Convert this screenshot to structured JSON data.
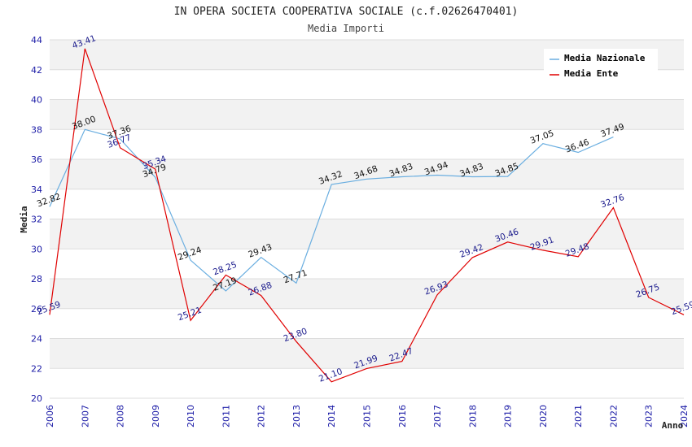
{
  "title": "IN OPERA SOCIETA COOPERATIVA SOCIALE (c.f.02626470401)",
  "subtitle": "Media Importi",
  "colors": {
    "nazionale": "#6aaee0",
    "ente": "#e00000",
    "tick": "#1a1aa6",
    "band": "#f2f2f2",
    "grid": "#dddddd"
  },
  "chart_data": {
    "type": "line",
    "xlabel": "Anno",
    "ylabel": "Media",
    "ylim": [
      20,
      44
    ],
    "yticks": [
      20,
      22,
      24,
      26,
      28,
      30,
      32,
      34,
      36,
      38,
      40,
      42,
      44
    ],
    "x": [
      "2006",
      "2007",
      "2008",
      "2009",
      "2010",
      "2011",
      "2012",
      "2013",
      "2014",
      "2015",
      "2016",
      "2017",
      "2018",
      "2019",
      "2020",
      "2021",
      "2022",
      "2023",
      "2024"
    ],
    "legend_position": "top-right",
    "grid": true,
    "series": [
      {
        "name": "Media Nazionale",
        "color": "#6aaee0",
        "label_color": "#111111",
        "values": [
          32.82,
          38.0,
          37.36,
          34.79,
          29.24,
          27.19,
          29.43,
          27.71,
          34.32,
          34.68,
          34.83,
          34.94,
          34.83,
          34.85,
          37.05,
          36.46,
          37.49,
          null,
          null
        ],
        "labels": [
          "32.82",
          "38.00",
          "37.36",
          "34.79",
          "29.24",
          "27.19",
          "29.43",
          "27.71",
          "34.32",
          "34.68",
          "34.83",
          "34.94",
          "34.83",
          "34.85",
          "37.05",
          "36.46",
          "37.49",
          null,
          null
        ]
      },
      {
        "name": "Media Ente",
        "color": "#e00000",
        "label_color": "#1a1a8c",
        "values": [
          25.59,
          43.41,
          36.77,
          35.34,
          25.21,
          28.25,
          26.88,
          23.8,
          21.1,
          21.99,
          22.47,
          26.93,
          29.42,
          30.46,
          29.91,
          29.48,
          32.76,
          26.75,
          25.59
        ],
        "labels": [
          "25.59",
          "43.41",
          "36.77",
          "35.34",
          "25.21",
          "28.25",
          "26.88",
          "23.80",
          "21.10",
          "21.99",
          "22.47",
          "26.93",
          "29.42",
          "30.46",
          "29.91",
          "29.48",
          "32.76",
          "26.75",
          "25.59"
        ]
      }
    ]
  }
}
